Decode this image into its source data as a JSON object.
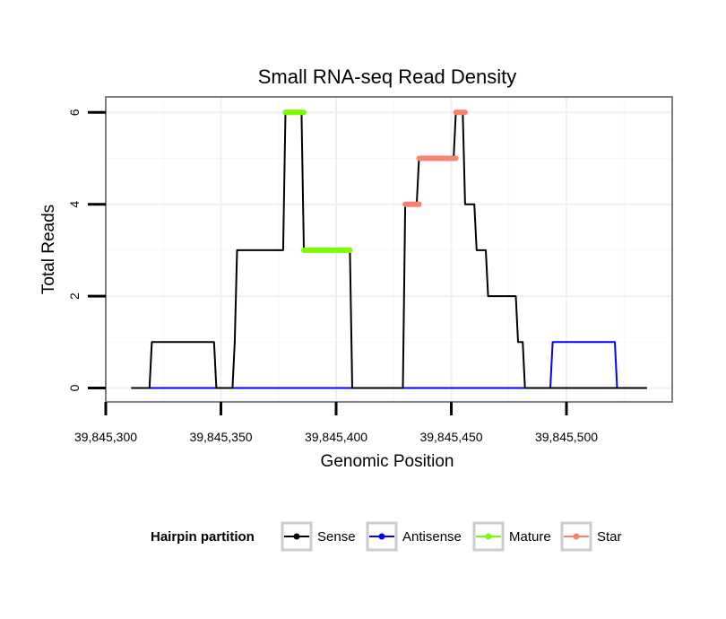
{
  "chart_data": {
    "type": "line",
    "title": "Small RNA-seq Read Density",
    "xlabel": "Genomic Position",
    "ylabel": "Total Reads",
    "xlim": [
      39845300,
      39845550
    ],
    "ylim": [
      -0.25,
      6.35
    ],
    "x_ticks": [
      39845300,
      39845350,
      39845400,
      39845450,
      39845500
    ],
    "x_tick_labels": [
      "39,845,300",
      "39,845,350",
      "39,845,400",
      "39,845,450",
      "39,845,500"
    ],
    "y_ticks": [
      0,
      2,
      4,
      6
    ],
    "y_tick_labels": [
      "0",
      "2",
      "4",
      "6"
    ],
    "grid": true,
    "legend": {
      "title": "Hairpin partition",
      "placement": "bottom",
      "entries": [
        {
          "label": "Sense",
          "color": "#000000"
        },
        {
          "label": "Antisense",
          "color": "#0000ff"
        },
        {
          "label": "Mature",
          "color": "#7cfc00"
        },
        {
          "label": "Star",
          "color": "#fa8072"
        }
      ]
    },
    "series": [
      {
        "name": "Sense",
        "color": "#000000",
        "points": [
          [
            39845311,
            0
          ],
          [
            39845319,
            0
          ],
          [
            39845320,
            1
          ],
          [
            39845347,
            1
          ],
          [
            39845348,
            0
          ],
          [
            39845355,
            0
          ],
          [
            39845356,
            1
          ],
          [
            39845357,
            3
          ],
          [
            39845377,
            3
          ],
          [
            39845378,
            6
          ],
          [
            39845385,
            6
          ],
          [
            39845386,
            3
          ],
          [
            39845406,
            3
          ],
          [
            39845407,
            0
          ],
          [
            39845429,
            0
          ],
          [
            39845430,
            4
          ],
          [
            39845435,
            4
          ],
          [
            39845436,
            5
          ],
          [
            39845451,
            5
          ],
          [
            39845452,
            6
          ],
          [
            39845455,
            6
          ],
          [
            39845456,
            4
          ],
          [
            39845460,
            4
          ],
          [
            39845461,
            3
          ],
          [
            39845465,
            3
          ],
          [
            39845466,
            2
          ],
          [
            39845478,
            2
          ],
          [
            39845479,
            1
          ],
          [
            39845481,
            1
          ],
          [
            39845482,
            0
          ],
          [
            39845535,
            0
          ]
        ]
      },
      {
        "name": "Antisense",
        "color": "#0000ff",
        "points": [
          [
            39845319,
            0
          ],
          [
            39845493,
            0
          ],
          [
            39845494,
            1
          ],
          [
            39845521,
            1
          ],
          [
            39845522,
            0
          ]
        ]
      },
      {
        "name": "Mature",
        "color": "#7cfc00",
        "segments": [
          {
            "x": [
              39845378,
              39845386
            ],
            "y": 6
          },
          {
            "x": [
              39845386,
              39845406
            ],
            "y": 3
          }
        ]
      },
      {
        "name": "Star",
        "color": "#fa8072",
        "segments": [
          {
            "x": [
              39845430,
              39845436
            ],
            "y": 4
          },
          {
            "x": [
              39845436,
              39845452
            ],
            "y": 5
          },
          {
            "x": [
              39845452,
              39845456
            ],
            "y": 6
          }
        ]
      }
    ]
  }
}
